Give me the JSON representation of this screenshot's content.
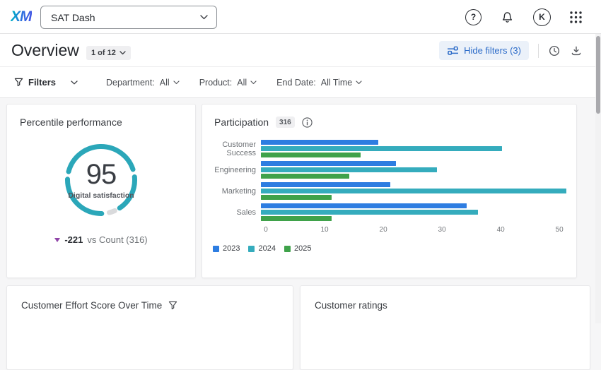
{
  "topbar": {
    "logo_text": "XM",
    "dashboard_selector_value": "SAT Dash",
    "avatar_letter": "K"
  },
  "overview": {
    "title": "Overview",
    "page_indicator": "1 of 12",
    "hide_filters_label": "Hide filters (3)"
  },
  "filters": {
    "label": "Filters",
    "items": [
      {
        "label": "Department:",
        "value": "All"
      },
      {
        "label": "Product:",
        "value": "All"
      },
      {
        "label": "End Date:",
        "value": "All Time"
      }
    ]
  },
  "cards": {
    "percentile_performance": {
      "title": "Percentile performance",
      "gauge": {
        "value": "95",
        "label": "Digital satisfaction",
        "ring_color": "#2ba7b9",
        "remainder_color": "#d9dadc",
        "segments": [
          {
            "from": 284.5,
            "to": 431.5,
            "color": "#2ba7b9"
          },
          {
            "from": 84.5,
            "to": 146.5,
            "color": "#2ba7b9"
          },
          {
            "from": 156,
            "to": 166,
            "color": "#d9dadc"
          },
          {
            "from": 179,
            "to": 271.5,
            "color": "#2ba7b9"
          }
        ]
      },
      "comparison": {
        "direction": "down",
        "delta": "-221",
        "context": "vs Count (316)",
        "arrow_color": "#9045a8"
      }
    },
    "participation": {
      "title": "Participation",
      "count_badge": "316",
      "chart_data": {
        "type": "bar",
        "orientation": "horizontal",
        "categories": [
          "Customer Success",
          "Engineering",
          "Marketing",
          "Sales"
        ],
        "series": [
          {
            "name": "2023",
            "color": "#2d7de1",
            "values": [
              20,
              23,
              22,
              35
            ]
          },
          {
            "name": "2024",
            "color": "#35acbd",
            "values": [
              41,
              30,
              52,
              37
            ]
          },
          {
            "name": "2025",
            "color": "#3fa24a",
            "values": [
              17,
              15,
              12,
              12
            ]
          }
        ],
        "xlim": [
          0,
          52.5
        ],
        "xticks": [
          0,
          10,
          20,
          30,
          40,
          50
        ],
        "legend_position": "bottom",
        "grid": false
      }
    },
    "ces_over_time": {
      "title": "Customer Effort Score Over Time"
    },
    "customer_ratings": {
      "title": "Customer ratings"
    }
  }
}
